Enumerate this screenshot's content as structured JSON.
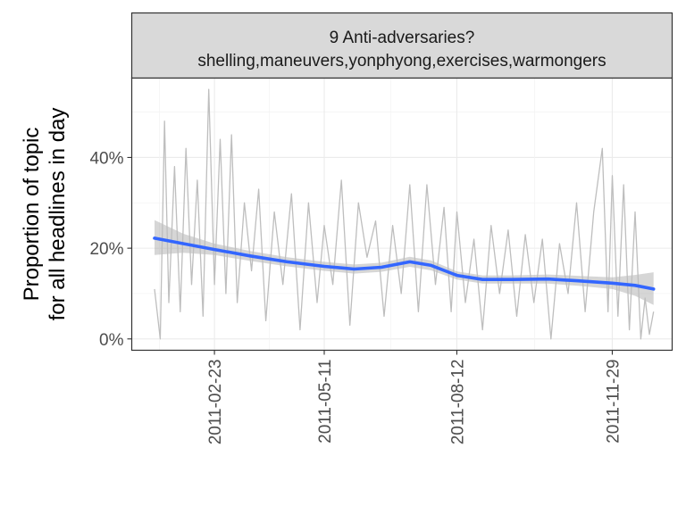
{
  "chart_data": {
    "type": "line",
    "facet_strip": {
      "line1": "9 Anti-adversaries?",
      "line2": "shelling,maneuvers,yonphyong,exercises,warmongers"
    },
    "ylabel_line1": "Proportion of topic",
    "ylabel_line2": "for all headlines in day",
    "xlabel": "",
    "x_ticks": [
      {
        "date": "2011-02-23",
        "label": "2011-02-23"
      },
      {
        "date": "2011-05-11",
        "label": "2011-05-11"
      },
      {
        "date": "2011-08-12",
        "label": "2011-08-12"
      },
      {
        "date": "2011-11-29",
        "label": "2011-11-29"
      }
    ],
    "y_ticks": [
      {
        "value": 0.0,
        "label": "0%"
      },
      {
        "value": 0.2,
        "label": "20%"
      },
      {
        "value": 0.4,
        "label": "40%"
      }
    ],
    "xlim": [
      "2010-12-27",
      "2012-01-10"
    ],
    "ylim": [
      -0.025,
      0.575
    ],
    "grid": true,
    "series": [
      {
        "style": "raw-daily",
        "color": "#bebebe",
        "x": [
          "2011-01-12",
          "2011-01-16",
          "2011-01-19",
          "2011-01-22",
          "2011-01-26",
          "2011-01-30",
          "2011-02-03",
          "2011-02-07",
          "2011-02-11",
          "2011-02-15",
          "2011-02-19",
          "2011-02-23",
          "2011-02-27",
          "2011-03-03",
          "2011-03-07",
          "2011-03-11",
          "2011-03-16",
          "2011-03-21",
          "2011-03-26",
          "2011-03-31",
          "2011-04-06",
          "2011-04-12",
          "2011-04-18",
          "2011-04-24",
          "2011-04-30",
          "2011-05-06",
          "2011-05-11",
          "2011-05-17",
          "2011-05-23",
          "2011-05-29",
          "2011-06-04",
          "2011-06-10",
          "2011-06-16",
          "2011-06-22",
          "2011-06-28",
          "2011-07-04",
          "2011-07-10",
          "2011-07-16",
          "2011-07-22",
          "2011-07-28",
          "2011-08-03",
          "2011-08-08",
          "2011-08-12",
          "2011-08-18",
          "2011-08-24",
          "2011-08-30",
          "2011-09-05",
          "2011-09-11",
          "2011-09-17",
          "2011-09-23",
          "2011-09-29",
          "2011-10-05",
          "2011-10-11",
          "2011-10-17",
          "2011-10-23",
          "2011-10-29",
          "2011-11-04",
          "2011-11-10",
          "2011-11-16",
          "2011-11-22",
          "2011-11-26",
          "2011-11-29",
          "2011-12-03",
          "2011-12-07",
          "2011-12-11",
          "2011-12-15",
          "2011-12-19",
          "2011-12-22",
          "2011-12-25",
          "2011-12-28"
        ],
        "y": [
          0.11,
          0.0,
          0.48,
          0.08,
          0.38,
          0.06,
          0.42,
          0.12,
          0.35,
          0.05,
          0.55,
          0.12,
          0.44,
          0.1,
          0.45,
          0.08,
          0.3,
          0.15,
          0.33,
          0.04,
          0.28,
          0.12,
          0.32,
          0.02,
          0.3,
          0.08,
          0.25,
          0.12,
          0.35,
          0.03,
          0.3,
          0.18,
          0.26,
          0.05,
          0.25,
          0.1,
          0.34,
          0.06,
          0.34,
          0.12,
          0.29,
          0.06,
          0.28,
          0.08,
          0.22,
          0.02,
          0.25,
          0.1,
          0.24,
          0.05,
          0.23,
          0.08,
          0.22,
          0.0,
          0.21,
          0.1,
          0.3,
          0.06,
          0.28,
          0.42,
          0.06,
          0.36,
          0.05,
          0.34,
          0.02,
          0.28,
          0.0,
          0.09,
          0.01,
          0.06
        ]
      },
      {
        "style": "smooth",
        "color": "#3366ff",
        "ci_color": "#999999",
        "x": [
          "2011-01-12",
          "2011-02-01",
          "2011-02-23",
          "2011-03-20",
          "2011-04-15",
          "2011-05-11",
          "2011-06-01",
          "2011-06-20",
          "2011-07-10",
          "2011-07-25",
          "2011-08-12",
          "2011-08-30",
          "2011-09-20",
          "2011-10-15",
          "2011-11-05",
          "2011-11-29",
          "2011-12-15",
          "2011-12-28"
        ],
        "y": [
          0.222,
          0.21,
          0.197,
          0.183,
          0.17,
          0.16,
          0.154,
          0.158,
          0.17,
          0.162,
          0.14,
          0.131,
          0.131,
          0.132,
          0.128,
          0.123,
          0.118,
          0.11
        ],
        "ci_low": [
          0.185,
          0.19,
          0.185,
          0.172,
          0.16,
          0.15,
          0.144,
          0.148,
          0.159,
          0.151,
          0.131,
          0.122,
          0.122,
          0.122,
          0.117,
          0.11,
          0.095,
          0.075
        ],
        "ci_high": [
          0.262,
          0.232,
          0.21,
          0.194,
          0.18,
          0.17,
          0.164,
          0.168,
          0.181,
          0.173,
          0.149,
          0.14,
          0.14,
          0.142,
          0.139,
          0.136,
          0.141,
          0.147
        ]
      }
    ]
  }
}
